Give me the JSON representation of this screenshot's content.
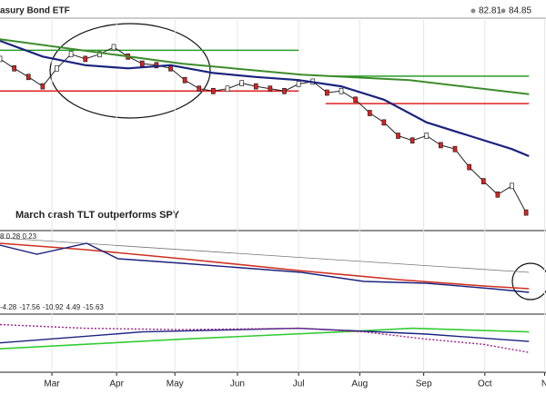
{
  "chart_data": {
    "type": "line",
    "title": "asury Bond ETF",
    "header_values": [
      82.81,
      84.85
    ],
    "annotation": "March crash TLT outperforms SPY",
    "xlim": [
      0,
      38.4
    ],
    "xticks": [
      {
        "value": 3.65,
        "label": "Mar"
      },
      {
        "value": 8.2,
        "label": "Apr"
      },
      {
        "value": 12.3,
        "label": "May"
      },
      {
        "value": 16.7,
        "label": "Jun"
      },
      {
        "value": 21.0,
        "label": "Jul"
      },
      {
        "value": 25.3,
        "label": "Aug"
      },
      {
        "value": 29.8,
        "label": "Sep"
      },
      {
        "value": 34.1,
        "label": "Oct"
      },
      {
        "value": 38.3,
        "label": "N"
      }
    ],
    "grid": true,
    "panels": [
      {
        "ylim": [
          80.7,
          107.8
        ],
        "levels": [
          {
            "value": 103.7,
            "x": [
              0,
              21.0
            ],
            "color": "#2a9d2a"
          },
          {
            "value": 98.5,
            "x": [
              0,
              21.0
            ],
            "color": "#e02020"
          },
          {
            "value": 100.4,
            "x": [
              22.9,
              37.2
            ],
            "color": "#2a9d2a"
          },
          {
            "value": 96.9,
            "x": [
              22.9,
              37.2
            ],
            "color": "#e02020"
          }
        ],
        "series": [
          {
            "color": "#222222",
            "markers": true,
            "x": [
              0,
              1,
              2,
              3,
              4,
              5,
              6,
              7,
              8,
              9,
              10,
              11,
              12,
              13,
              14,
              15,
              16,
              17,
              18,
              19,
              20,
              21,
              22,
              23,
              24,
              25,
              26,
              27,
              28,
              29,
              30,
              31,
              32,
              33,
              34,
              35,
              36,
              37
            ],
            "values": [
              102.6,
              101.4,
              100.3,
              99.1,
              101.4,
              103.2,
              102.6,
              103.2,
              104.1,
              102.9,
              102.0,
              101.8,
              101.4,
              99.9,
              98.8,
              98.5,
              98.8,
              99.5,
              99.1,
              98.8,
              98.5,
              99.4,
              99.7,
              98.3,
              98.5,
              97.4,
              95.7,
              94.5,
              92.8,
              92.2,
              92.8,
              91.6,
              91.1,
              88.8,
              87.0,
              85.3,
              86.4,
              83.0
            ]
          },
          {
            "color": "#1a237e",
            "width": 2.2,
            "x": [
              0,
              3,
              6,
              9,
              12,
              15,
              18,
              21,
              24,
              27,
              30,
              33,
              36,
              37.2
            ],
            "values": [
              104.9,
              102.9,
              101.8,
              101.4,
              101.8,
              100.8,
              100.3,
              99.9,
              99.1,
              97.4,
              94.5,
              92.8,
              91.1,
              90.2
            ]
          },
          {
            "color": "#3c8c2c",
            "width": 2,
            "x": [
              0,
              12.8,
              21.2,
              28.8,
              37.2
            ],
            "values": [
              105.1,
              102.0,
              100.6,
              99.9,
              98.1
            ]
          }
        ]
      },
      {
        "ylim": [
          0,
          100
        ],
        "label": "8 0.28 0.23",
        "series": [
          {
            "color": "#777777",
            "width": 0.8,
            "x": [
              0,
              37.2
            ],
            "values": [
              90.9,
              41.6
            ]
          },
          {
            "color": "#d03020",
            "width": 1.6,
            "x": [
              0,
              6,
              12.8,
              21,
              28,
              34,
              37.2
            ],
            "values": [
              83.1,
              74,
              61,
              44.2,
              31.2,
              22.1,
              18.2
            ]
          },
          {
            "color": "#1a237e",
            "width": 1.4,
            "x": [
              0,
              2.6,
              6.1,
              8.3,
              12.8,
              21.2,
              25.6,
              30,
              34.6,
              37.2
            ],
            "values": [
              80.5,
              67.5,
              83.1,
              61,
              54.5,
              41.6,
              28.6,
              26,
              18.2,
              13
            ]
          }
        ]
      },
      {
        "ylim": [
          0,
          100
        ],
        "label_values": [
          -4.28,
          -17.56,
          -10.92,
          4.49,
          -15.63
        ],
        "label_colors": [
          "#222222",
          "#222222",
          "#222222",
          "#2aa02a",
          "#1a237e"
        ],
        "series": [
          {
            "color": "#33cc33",
            "width": 1.6,
            "x": [
              0,
              12.8,
              24,
              29,
              37.2
            ],
            "values": [
              41,
              57.7,
              70.5,
              76.9,
              70.5
            ]
          },
          {
            "color": "#1a237e",
            "width": 1.4,
            "x": [
              0,
              10,
              21,
              30,
              37.2
            ],
            "values": [
              51.3,
              70.5,
              76.9,
              66.7,
              53.8
            ]
          },
          {
            "color": "#a0208a",
            "width": 1.4,
            "dash": true,
            "x": [
              0,
              6,
              12.8,
              21,
              25.6,
              30,
              34,
              37.2
            ],
            "values": [
              83.3,
              76.9,
              74.4,
              76.9,
              70.5,
              57.7,
              48.7,
              34.6
            ]
          }
        ]
      }
    ]
  }
}
